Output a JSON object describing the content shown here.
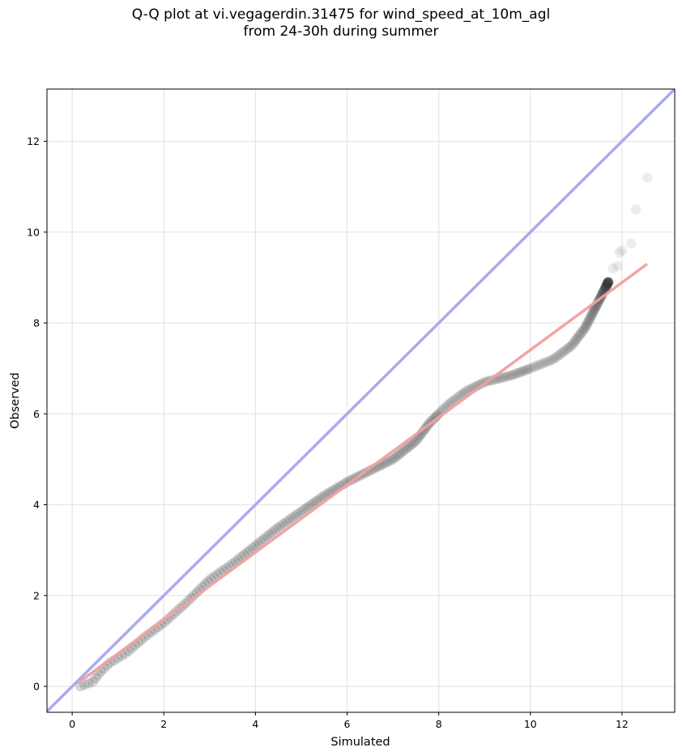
{
  "chart_data": {
    "type": "scatter",
    "title_line1": "Q-Q plot at vi.vegagerdin.31475 for wind_speed_at_10m_agl",
    "title_line2": "from 24-30h during summer",
    "xlabel": "Simulated",
    "ylabel": "Observed",
    "xlim": [
      -0.55,
      13.15
    ],
    "ylim": [
      -0.57,
      13.15
    ],
    "xticks": [
      0,
      2,
      4,
      6,
      8,
      10,
      12
    ],
    "yticks": [
      0,
      2,
      4,
      6,
      8,
      10,
      12
    ],
    "grid": true,
    "identity_line": {
      "from": [
        -0.55,
        -0.55
      ],
      "to": [
        13.15,
        13.15
      ],
      "color": "#aaaaf0"
    },
    "fit_line": {
      "from": [
        0.12,
        0.07
      ],
      "to": [
        12.55,
        9.3
      ],
      "color": "#f0a0a0"
    },
    "quantile_curve": [
      [
        0.18,
        0.0
      ],
      [
        0.45,
        0.1
      ],
      [
        0.6,
        0.3
      ],
      [
        0.8,
        0.5
      ],
      [
        1.2,
        0.75
      ],
      [
        1.6,
        1.1
      ],
      [
        2.0,
        1.4
      ],
      [
        2.5,
        1.85
      ],
      [
        3.0,
        2.35
      ],
      [
        3.5,
        2.7
      ],
      [
        4.0,
        3.1
      ],
      [
        4.5,
        3.5
      ],
      [
        5.0,
        3.85
      ],
      [
        5.5,
        4.2
      ],
      [
        6.0,
        4.5
      ],
      [
        6.5,
        4.75
      ],
      [
        7.0,
        5.0
      ],
      [
        7.5,
        5.4
      ],
      [
        7.8,
        5.8
      ],
      [
        8.2,
        6.2
      ],
      [
        8.6,
        6.5
      ],
      [
        9.0,
        6.7
      ],
      [
        9.6,
        6.85
      ],
      [
        10.0,
        7.0
      ],
      [
        10.5,
        7.2
      ],
      [
        10.9,
        7.5
      ],
      [
        11.2,
        7.9
      ],
      [
        11.45,
        8.4
      ],
      [
        11.7,
        8.9
      ]
    ],
    "tail_points": [
      [
        11.8,
        9.2
      ],
      [
        11.9,
        9.25
      ],
      [
        11.95,
        9.55
      ],
      [
        12.0,
        9.6
      ],
      [
        12.2,
        9.75
      ],
      [
        12.3,
        10.5
      ],
      [
        12.55,
        11.2
      ]
    ],
    "point_count": 320,
    "marker_color": "#333333"
  }
}
